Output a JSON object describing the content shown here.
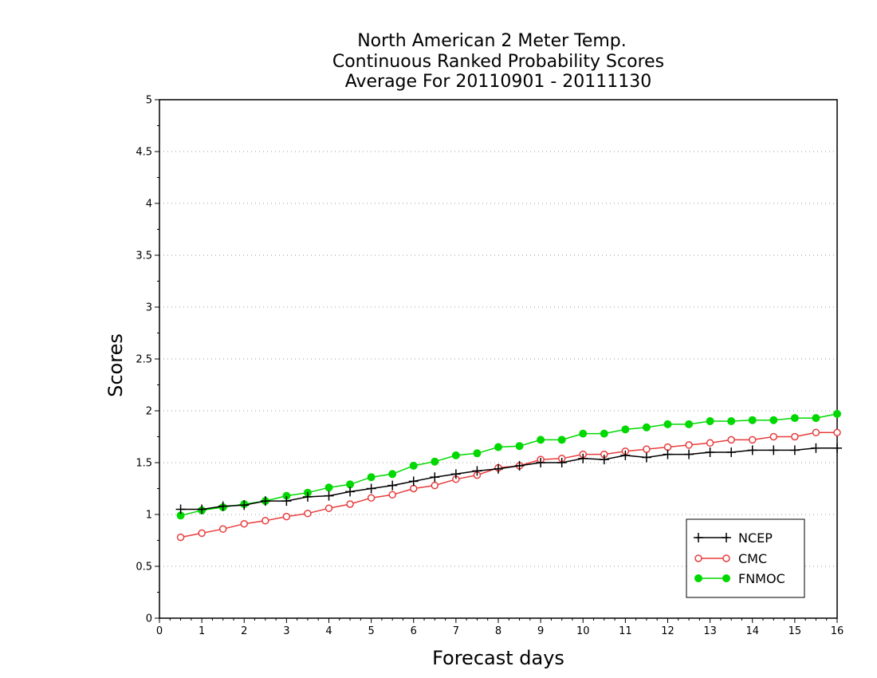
{
  "chart_data": {
    "type": "line",
    "title_lines": [
      "North American 2 Meter Temp.",
      "Continuous Ranked Probability Scores",
      "Average For 20110901 - 20111130"
    ],
    "xlabel": "Forecast days",
    "ylabel": "Scores",
    "xlim": [
      0,
      16
    ],
    "ylim": [
      0,
      5
    ],
    "x_ticks": [
      "0",
      "1",
      "2",
      "3",
      "4",
      "5",
      "6",
      "7",
      "8",
      "9",
      "10",
      "11",
      "12",
      "13",
      "14",
      "15",
      "16"
    ],
    "y_ticks": [
      "0",
      "0.5",
      "1",
      "1.5",
      "2",
      "2.5",
      "3",
      "3.5",
      "4",
      "4.5",
      "5"
    ],
    "grid": "horizontal dotted",
    "legend_position": "bottom-right",
    "x": [
      0.5,
      1,
      1.5,
      2,
      2.5,
      3,
      3.5,
      4,
      4.5,
      5,
      5.5,
      6,
      6.5,
      7,
      7.5,
      8,
      8.5,
      9,
      9.5,
      10,
      10.5,
      11,
      11.5,
      12,
      12.5,
      13,
      13.5,
      14,
      14.5,
      15,
      15.5,
      16
    ],
    "series": [
      {
        "name": "NCEP",
        "color": "#000000",
        "marker": "plus",
        "values": [
          1.05,
          1.05,
          1.08,
          1.09,
          1.13,
          1.13,
          1.17,
          1.18,
          1.22,
          1.25,
          1.28,
          1.32,
          1.36,
          1.39,
          1.42,
          1.44,
          1.47,
          1.5,
          1.5,
          1.54,
          1.53,
          1.57,
          1.55,
          1.58,
          1.58,
          1.6,
          1.6,
          1.62,
          1.62,
          1.62,
          1.64,
          1.64
        ]
      },
      {
        "name": "CMC",
        "color": "#e83c3c",
        "marker": "open-circle",
        "values": [
          0.78,
          0.82,
          0.86,
          0.91,
          0.94,
          0.98,
          1.01,
          1.06,
          1.1,
          1.16,
          1.19,
          1.25,
          1.28,
          1.34,
          1.38,
          1.45,
          1.47,
          1.53,
          1.54,
          1.58,
          1.58,
          1.61,
          1.63,
          1.65,
          1.67,
          1.69,
          1.72,
          1.72,
          1.75,
          1.75,
          1.79,
          1.79
        ]
      },
      {
        "name": "FNMOC",
        "color": "#00d800",
        "marker": "filled-circle",
        "values": [
          0.99,
          1.04,
          1.07,
          1.1,
          1.13,
          1.18,
          1.21,
          1.26,
          1.29,
          1.36,
          1.39,
          1.47,
          1.51,
          1.57,
          1.59,
          1.65,
          1.66,
          1.72,
          1.72,
          1.78,
          1.78,
          1.82,
          1.84,
          1.87,
          1.87,
          1.9,
          1.9,
          1.91,
          1.91,
          1.93,
          1.93,
          1.97
        ]
      }
    ]
  }
}
